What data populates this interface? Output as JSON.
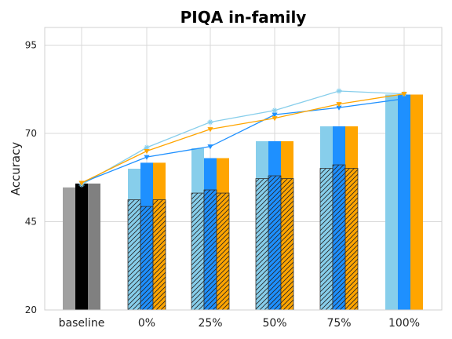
{
  "chart_data": {
    "type": "bar",
    "title": "PIQA in-family",
    "xlabel": "",
    "ylabel": "Accuracy",
    "ylim": [
      20,
      100
    ],
    "yticks": [
      20,
      45,
      70,
      95
    ],
    "grid": true,
    "categories": [
      "baseline",
      "0%",
      "25%",
      "50%",
      "75%",
      "100%"
    ],
    "colors": {
      "s1": "#87ceeb",
      "s2": "#1e90ff",
      "s3": "#ffa500",
      "baseline": [
        "#a0a0a0",
        "#000000",
        "#808080"
      ]
    },
    "baseline_bars": [
      54.7,
      55.8,
      55.8
    ],
    "solid_bars": {
      "s1": [
        null,
        60.0,
        65.8,
        67.8,
        72.0,
        81.0
      ],
      "s2": [
        null,
        61.7,
        63.0,
        67.8,
        72.0,
        81.0
      ],
      "s3": [
        null,
        61.7,
        63.0,
        67.8,
        72.0,
        81.0
      ]
    },
    "hatched_bars": {
      "s1": [
        null,
        51.2,
        53.1,
        57.2,
        60.1,
        null
      ],
      "s2": [
        null,
        49.3,
        54.0,
        58.0,
        61.1,
        null
      ],
      "s3": [
        null,
        51.2,
        53.1,
        57.2,
        60.1,
        null
      ]
    },
    "lines": {
      "s1": [
        55.5,
        66.0,
        73.2,
        76.5,
        82.0,
        81.2
      ],
      "s2": [
        56.0,
        63.3,
        66.3,
        75.3,
        77.3,
        79.8
      ],
      "s3": [
        56.0,
        65.0,
        71.2,
        74.3,
        78.3,
        81.2
      ]
    }
  }
}
